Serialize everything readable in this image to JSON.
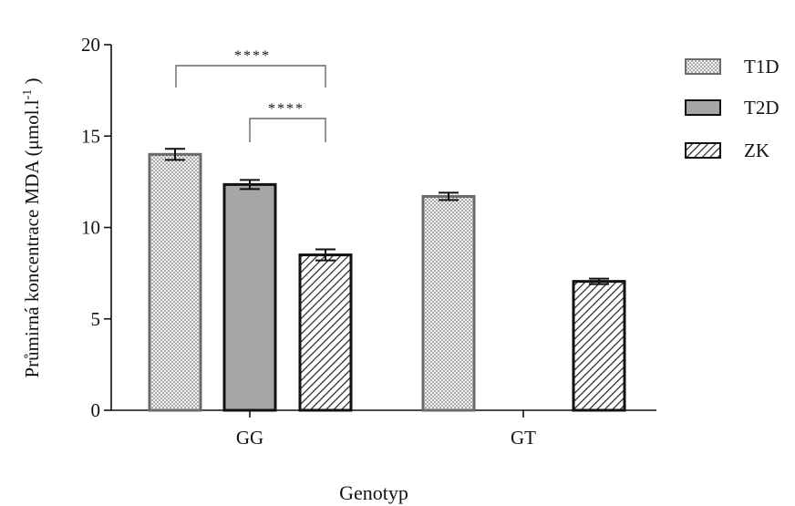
{
  "chart_data": {
    "type": "bar",
    "title": "",
    "xlabel": "Genotyp",
    "ylabel_text": "Průmirná koncentrace MDA (μmol.l",
    "ylabel_sup": "-1",
    "ylabel_close": " )",
    "categories": [
      "GG",
      "GT"
    ],
    "ylim": [
      0,
      20
    ],
    "yticks": [
      "0",
      "5",
      "10",
      "15",
      "20"
    ],
    "series": [
      {
        "name": "T1D",
        "values": [
          14.0,
          11.7
        ],
        "errors": [
          0.3,
          0.2
        ],
        "pattern": "dots"
      },
      {
        "name": "T2D",
        "values": [
          12.35,
          null
        ],
        "errors": [
          0.25,
          null
        ],
        "pattern": "gray"
      },
      {
        "name": "ZK",
        "values": [
          8.5,
          7.05
        ],
        "errors": [
          0.3,
          0.15
        ],
        "pattern": "hatch"
      }
    ],
    "annotations": [
      {
        "label": "****",
        "from": "T1D",
        "to": "ZK",
        "category": "GG"
      },
      {
        "label": "****",
        "from": "T2D",
        "to": "ZK",
        "category": "GG"
      }
    ],
    "grid": false,
    "legend_position": "top-right"
  }
}
